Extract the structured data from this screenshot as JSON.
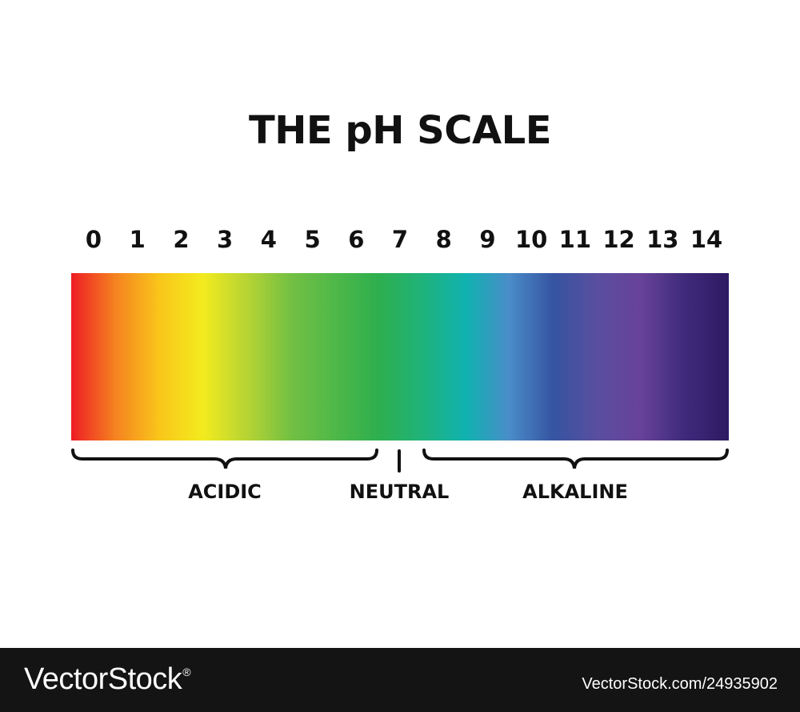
{
  "title": "THE pH SCALE",
  "scale": {
    "ticks": [
      "0",
      "1",
      "2",
      "3",
      "4",
      "5",
      "6",
      "7",
      "8",
      "9",
      "10",
      "11",
      "12",
      "13",
      "14"
    ],
    "colors": [
      "#ed1c24",
      "#f58220",
      "#f9c51a",
      "#f3eb1e",
      "#b7d433",
      "#74c043",
      "#4fb848",
      "#2eaf4e",
      "#1fb27a",
      "#10b2b0",
      "#4a8cc9",
      "#3554a1",
      "#5a4e9f",
      "#674299",
      "#3e2a7a",
      "#2e1a62"
    ]
  },
  "groups": {
    "acidic": "ACIDIC",
    "neutral": "NEUTRAL",
    "alkaline": "ALKALINE"
  },
  "footer": {
    "brand": "VectorStock",
    "brand_mark": "®",
    "stock_id": "VectorStock.com/24935902"
  }
}
